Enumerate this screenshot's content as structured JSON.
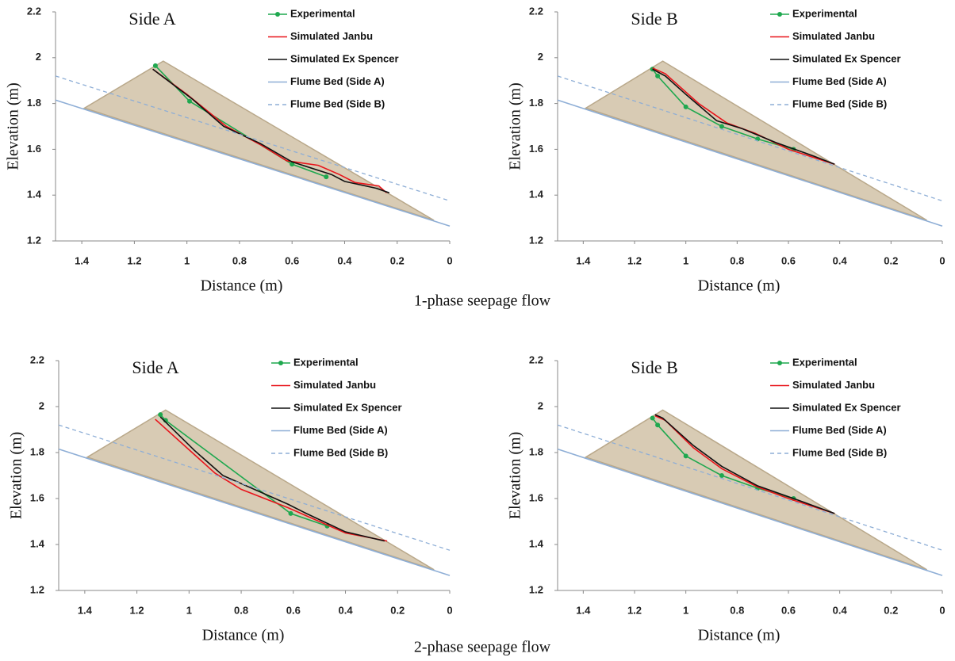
{
  "figure_captions": [
    "1-phase seepage flow",
    "2-phase seepage flow"
  ],
  "chart_data": [
    {
      "type": "line",
      "title": "Side A",
      "xlabel": "Distance (m)",
      "ylabel": "Elevation (m)",
      "xlim": [
        1.5,
        0
      ],
      "ylim": [
        1.2,
        2.2
      ],
      "xticks": [
        1.4,
        1.2,
        1,
        0.8,
        0.6,
        0.4,
        0.2,
        0
      ],
      "yticks": [
        1.2,
        1.4,
        1.6,
        1.8,
        2,
        2.2
      ],
      "slope_body": {
        "color": "#d8cbb4",
        "x": [
          1.39,
          1.09,
          0.06
        ],
        "y": [
          1.78,
          1.985,
          1.29
        ]
      },
      "series": [
        {
          "name": "Experimental",
          "color": "#1fa84f",
          "marker": true,
          "x": [
            1.12,
            0.99,
            0.6,
            0.47
          ],
          "values": [
            1.965,
            1.81,
            1.535,
            1.48
          ]
        },
        {
          "name": "Simulated Janbu",
          "color": "#e8141b",
          "x": [
            1.13,
            1.0,
            0.85,
            0.72,
            0.62,
            0.5,
            0.42,
            0.36,
            0.27,
            0.24
          ],
          "values": [
            1.95,
            1.84,
            1.7,
            1.62,
            1.55,
            1.53,
            1.49,
            1.455,
            1.44,
            1.41
          ]
        },
        {
          "name": "Simulated Ex Spencer",
          "color": "#111111",
          "x": [
            1.13,
            0.98,
            0.86,
            0.72,
            0.6,
            0.45,
            0.4,
            0.28,
            0.23
          ],
          "values": [
            1.95,
            1.82,
            1.7,
            1.625,
            1.545,
            1.49,
            1.46,
            1.43,
            1.41
          ]
        },
        {
          "name": "Flume Bed (Side A)",
          "color": "#8eaed6",
          "x": [
            1.5,
            0
          ],
          "values": [
            1.815,
            1.265
          ]
        },
        {
          "name": "Flume Bed (Side B)",
          "color": "#8eaed6",
          "dash": true,
          "x": [
            1.5,
            0
          ],
          "values": [
            1.92,
            1.375
          ]
        }
      ]
    },
    {
      "type": "line",
      "title": "Side B",
      "xlabel": "Distance (m)",
      "ylabel": "Elevation (m)",
      "xlim": [
        1.5,
        0
      ],
      "ylim": [
        1.2,
        2.2
      ],
      "xticks": [
        1.4,
        1.2,
        1,
        0.8,
        0.6,
        0.4,
        0.2,
        0
      ],
      "yticks": [
        1.2,
        1.4,
        1.6,
        1.8,
        2,
        2.2
      ],
      "slope_body": {
        "color": "#d8cbb4",
        "x": [
          1.39,
          1.09,
          0.06
        ],
        "y": [
          1.78,
          1.985,
          1.29
        ]
      },
      "series": [
        {
          "name": "Experimental",
          "color": "#1fa84f",
          "marker": true,
          "x": [
            1.13,
            1.11,
            1.0,
            0.86,
            0.72,
            0.58
          ],
          "values": [
            1.95,
            1.92,
            1.785,
            1.7,
            1.645,
            1.6
          ]
        },
        {
          "name": "Simulated Janbu",
          "color": "#e8141b",
          "x": [
            1.13,
            1.08,
            0.95,
            0.84,
            0.73,
            0.6,
            0.42
          ],
          "values": [
            1.955,
            1.93,
            1.8,
            1.715,
            1.67,
            1.6,
            1.535
          ]
        },
        {
          "name": "Simulated Ex Spencer",
          "color": "#111111",
          "x": [
            1.13,
            1.08,
            1.0,
            0.88,
            0.78,
            0.65,
            0.5,
            0.42
          ],
          "values": [
            1.95,
            1.92,
            1.84,
            1.725,
            1.69,
            1.63,
            1.57,
            1.535
          ]
        },
        {
          "name": "Flume Bed (Side A)",
          "color": "#8eaed6",
          "x": [
            1.5,
            0
          ],
          "values": [
            1.815,
            1.265
          ]
        },
        {
          "name": "Flume Bed (Side B)",
          "color": "#8eaed6",
          "dash": true,
          "x": [
            1.5,
            0
          ],
          "values": [
            1.92,
            1.375
          ]
        }
      ]
    },
    {
      "type": "line",
      "title": "Side A",
      "xlabel": "Distance (m)",
      "ylabel": "Elevation (m)",
      "xlim": [
        1.5,
        0
      ],
      "ylim": [
        1.2,
        2.2
      ],
      "xticks": [
        1.4,
        1.2,
        1,
        0.8,
        0.6,
        0.4,
        0.2,
        0
      ],
      "yticks": [
        1.2,
        1.4,
        1.6,
        1.8,
        2,
        2.2
      ],
      "slope_body": {
        "color": "#d8cbb4",
        "x": [
          1.39,
          1.09,
          0.06
        ],
        "y": [
          1.78,
          1.985,
          1.29
        ]
      },
      "series": [
        {
          "name": "Experimental",
          "color": "#1fa84f",
          "marker": true,
          "x": [
            1.11,
            1.09,
            0.61,
            0.47
          ],
          "values": [
            1.965,
            1.94,
            1.535,
            1.48
          ]
        },
        {
          "name": "Simulated Janbu",
          "color": "#e8141b",
          "x": [
            1.13,
            0.9,
            0.8,
            0.62,
            0.4,
            0.24
          ],
          "values": [
            1.945,
            1.71,
            1.64,
            1.56,
            1.45,
            1.415
          ]
        },
        {
          "name": "Simulated Ex Spencer",
          "color": "#111111",
          "x": [
            1.11,
            0.98,
            0.87,
            0.62,
            0.55,
            0.4,
            0.25
          ],
          "values": [
            1.955,
            1.81,
            1.7,
            1.575,
            1.535,
            1.455,
            1.415
          ]
        },
        {
          "name": "Flume Bed (Side A)",
          "color": "#8eaed6",
          "x": [
            1.5,
            0
          ],
          "values": [
            1.815,
            1.265
          ]
        },
        {
          "name": "Flume Bed (Side B)",
          "color": "#8eaed6",
          "dash": true,
          "x": [
            1.5,
            0
          ],
          "values": [
            1.92,
            1.375
          ]
        }
      ]
    },
    {
      "type": "line",
      "title": "Side B",
      "xlabel": "Distance (m)",
      "ylabel": "Elevation (m)",
      "xlim": [
        1.5,
        0
      ],
      "ylim": [
        1.2,
        2.2
      ],
      "xticks": [
        1.4,
        1.2,
        1,
        0.8,
        0.6,
        0.4,
        0.2,
        0
      ],
      "yticks": [
        1.2,
        1.4,
        1.6,
        1.8,
        2,
        2.2
      ],
      "slope_body": {
        "color": "#d8cbb4",
        "x": [
          1.39,
          1.09,
          0.06
        ],
        "y": [
          1.78,
          1.985,
          1.29
        ]
      },
      "series": [
        {
          "name": "Experimental",
          "color": "#1fa84f",
          "marker": true,
          "x": [
            1.13,
            1.11,
            1.0,
            0.86,
            0.72,
            0.58
          ],
          "values": [
            1.95,
            1.92,
            1.785,
            1.7,
            1.645,
            1.6
          ]
        },
        {
          "name": "Simulated Janbu",
          "color": "#e8141b",
          "x": [
            1.12,
            1.08,
            0.97,
            0.86,
            0.72,
            0.6,
            0.42
          ],
          "values": [
            1.96,
            1.94,
            1.82,
            1.73,
            1.65,
            1.6,
            1.535
          ]
        },
        {
          "name": "Simulated Ex Spencer",
          "color": "#111111",
          "x": [
            1.12,
            1.09,
            0.97,
            0.86,
            0.72,
            0.58,
            0.42
          ],
          "values": [
            1.965,
            1.95,
            1.83,
            1.74,
            1.655,
            1.6,
            1.535
          ]
        },
        {
          "name": "Flume Bed (Side A)",
          "color": "#8eaed6",
          "x": [
            1.5,
            0
          ],
          "values": [
            1.815,
            1.265
          ]
        },
        {
          "name": "Flume Bed (Side B)",
          "color": "#8eaed6",
          "dash": true,
          "x": [
            1.5,
            0
          ],
          "values": [
            1.92,
            1.375
          ]
        }
      ]
    }
  ]
}
